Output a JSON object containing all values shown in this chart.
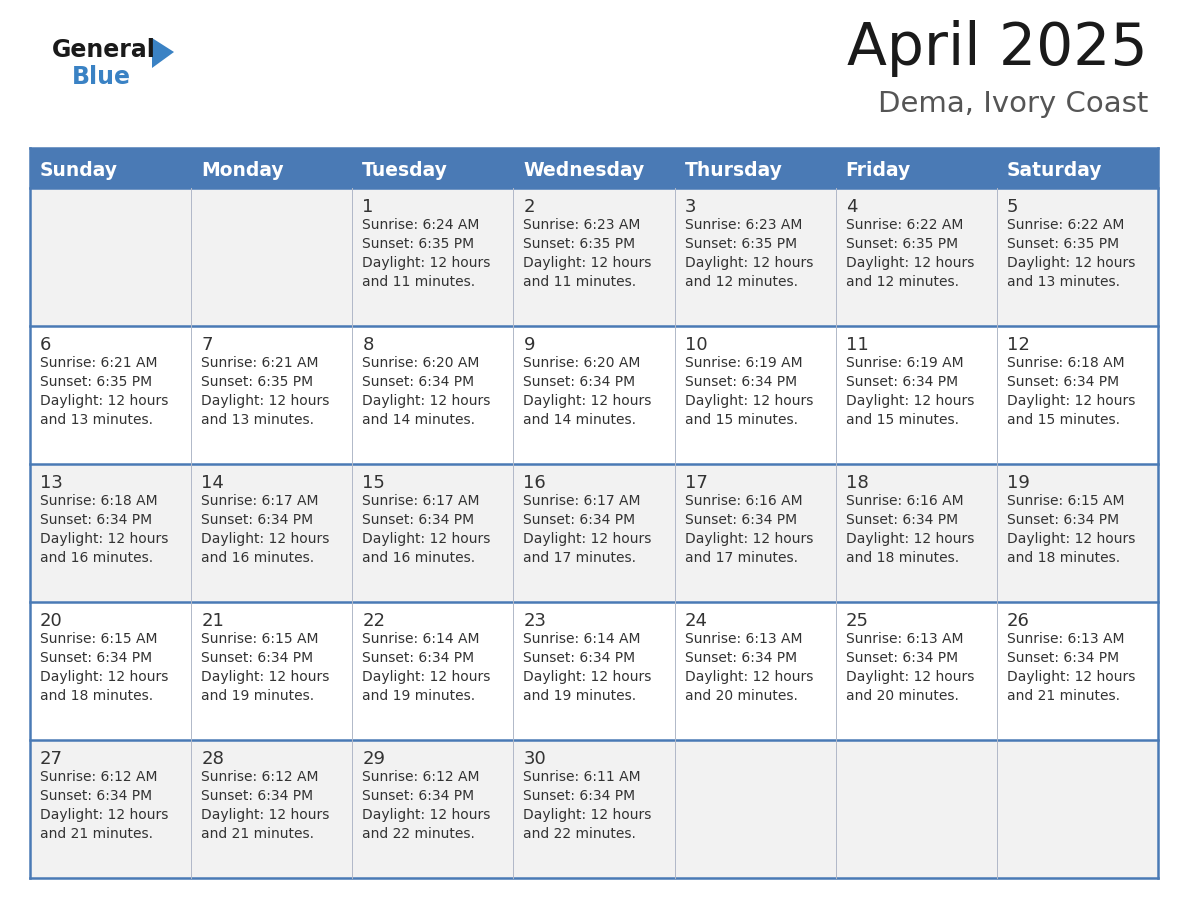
{
  "title": "April 2025",
  "subtitle": "Dema, Ivory Coast",
  "header_color": "#4a7ab5",
  "header_text_color": "#ffffff",
  "row_bg_odd": "#f2f2f2",
  "row_bg_even": "#ffffff",
  "border_color": "#4a7ab5",
  "separator_color": "#4a7ab5",
  "text_color": "#333333",
  "days_of_week": [
    "Sunday",
    "Monday",
    "Tuesday",
    "Wednesday",
    "Thursday",
    "Friday",
    "Saturday"
  ],
  "calendar": [
    [
      {
        "day": "",
        "info": ""
      },
      {
        "day": "",
        "info": ""
      },
      {
        "day": "1",
        "info": "Sunrise: 6:24 AM\nSunset: 6:35 PM\nDaylight: 12 hours\nand 11 minutes."
      },
      {
        "day": "2",
        "info": "Sunrise: 6:23 AM\nSunset: 6:35 PM\nDaylight: 12 hours\nand 11 minutes."
      },
      {
        "day": "3",
        "info": "Sunrise: 6:23 AM\nSunset: 6:35 PM\nDaylight: 12 hours\nand 12 minutes."
      },
      {
        "day": "4",
        "info": "Sunrise: 6:22 AM\nSunset: 6:35 PM\nDaylight: 12 hours\nand 12 minutes."
      },
      {
        "day": "5",
        "info": "Sunrise: 6:22 AM\nSunset: 6:35 PM\nDaylight: 12 hours\nand 13 minutes."
      }
    ],
    [
      {
        "day": "6",
        "info": "Sunrise: 6:21 AM\nSunset: 6:35 PM\nDaylight: 12 hours\nand 13 minutes."
      },
      {
        "day": "7",
        "info": "Sunrise: 6:21 AM\nSunset: 6:35 PM\nDaylight: 12 hours\nand 13 minutes."
      },
      {
        "day": "8",
        "info": "Sunrise: 6:20 AM\nSunset: 6:34 PM\nDaylight: 12 hours\nand 14 minutes."
      },
      {
        "day": "9",
        "info": "Sunrise: 6:20 AM\nSunset: 6:34 PM\nDaylight: 12 hours\nand 14 minutes."
      },
      {
        "day": "10",
        "info": "Sunrise: 6:19 AM\nSunset: 6:34 PM\nDaylight: 12 hours\nand 15 minutes."
      },
      {
        "day": "11",
        "info": "Sunrise: 6:19 AM\nSunset: 6:34 PM\nDaylight: 12 hours\nand 15 minutes."
      },
      {
        "day": "12",
        "info": "Sunrise: 6:18 AM\nSunset: 6:34 PM\nDaylight: 12 hours\nand 15 minutes."
      }
    ],
    [
      {
        "day": "13",
        "info": "Sunrise: 6:18 AM\nSunset: 6:34 PM\nDaylight: 12 hours\nand 16 minutes."
      },
      {
        "day": "14",
        "info": "Sunrise: 6:17 AM\nSunset: 6:34 PM\nDaylight: 12 hours\nand 16 minutes."
      },
      {
        "day": "15",
        "info": "Sunrise: 6:17 AM\nSunset: 6:34 PM\nDaylight: 12 hours\nand 16 minutes."
      },
      {
        "day": "16",
        "info": "Sunrise: 6:17 AM\nSunset: 6:34 PM\nDaylight: 12 hours\nand 17 minutes."
      },
      {
        "day": "17",
        "info": "Sunrise: 6:16 AM\nSunset: 6:34 PM\nDaylight: 12 hours\nand 17 minutes."
      },
      {
        "day": "18",
        "info": "Sunrise: 6:16 AM\nSunset: 6:34 PM\nDaylight: 12 hours\nand 18 minutes."
      },
      {
        "day": "19",
        "info": "Sunrise: 6:15 AM\nSunset: 6:34 PM\nDaylight: 12 hours\nand 18 minutes."
      }
    ],
    [
      {
        "day": "20",
        "info": "Sunrise: 6:15 AM\nSunset: 6:34 PM\nDaylight: 12 hours\nand 18 minutes."
      },
      {
        "day": "21",
        "info": "Sunrise: 6:15 AM\nSunset: 6:34 PM\nDaylight: 12 hours\nand 19 minutes."
      },
      {
        "day": "22",
        "info": "Sunrise: 6:14 AM\nSunset: 6:34 PM\nDaylight: 12 hours\nand 19 minutes."
      },
      {
        "day": "23",
        "info": "Sunrise: 6:14 AM\nSunset: 6:34 PM\nDaylight: 12 hours\nand 19 minutes."
      },
      {
        "day": "24",
        "info": "Sunrise: 6:13 AM\nSunset: 6:34 PM\nDaylight: 12 hours\nand 20 minutes."
      },
      {
        "day": "25",
        "info": "Sunrise: 6:13 AM\nSunset: 6:34 PM\nDaylight: 12 hours\nand 20 minutes."
      },
      {
        "day": "26",
        "info": "Sunrise: 6:13 AM\nSunset: 6:34 PM\nDaylight: 12 hours\nand 21 minutes."
      }
    ],
    [
      {
        "day": "27",
        "info": "Sunrise: 6:12 AM\nSunset: 6:34 PM\nDaylight: 12 hours\nand 21 minutes."
      },
      {
        "day": "28",
        "info": "Sunrise: 6:12 AM\nSunset: 6:34 PM\nDaylight: 12 hours\nand 21 minutes."
      },
      {
        "day": "29",
        "info": "Sunrise: 6:12 AM\nSunset: 6:34 PM\nDaylight: 12 hours\nand 22 minutes."
      },
      {
        "day": "30",
        "info": "Sunrise: 6:11 AM\nSunset: 6:34 PM\nDaylight: 12 hours\nand 22 minutes."
      },
      {
        "day": "",
        "info": ""
      },
      {
        "day": "",
        "info": ""
      },
      {
        "day": "",
        "info": ""
      }
    ]
  ],
  "logo_color_general": "#1a1a1a",
  "logo_color_blue": "#3a82c4",
  "logo_triangle_color": "#3a82c4"
}
